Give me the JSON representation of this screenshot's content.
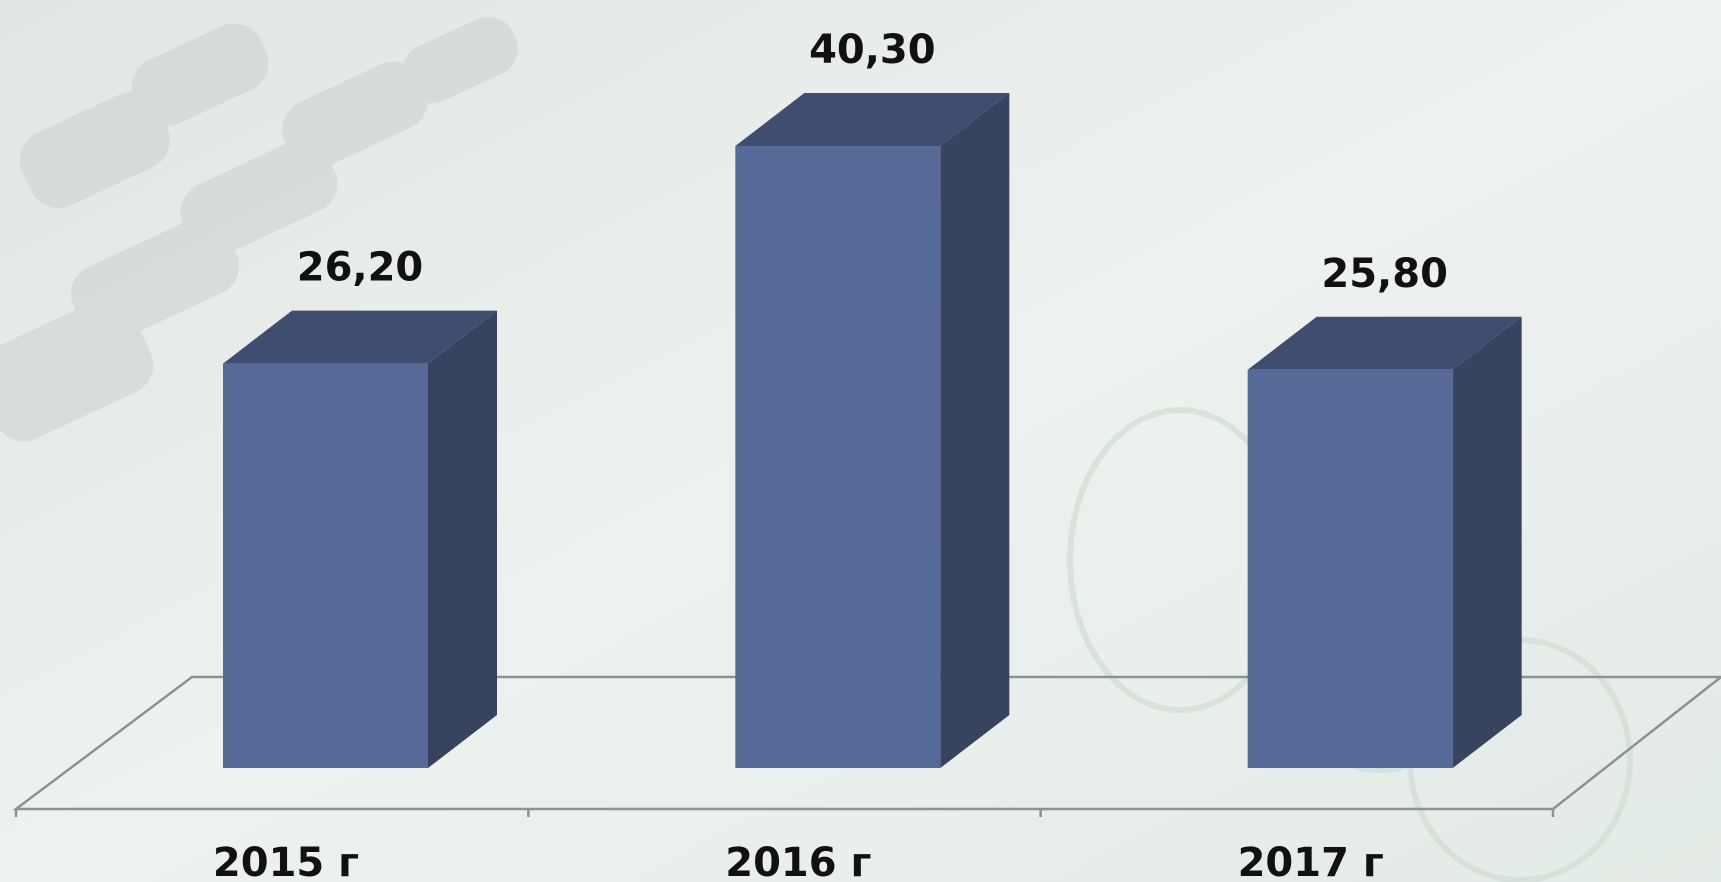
{
  "chart_data": {
    "type": "bar3d",
    "categories": [
      "2015 г",
      "2016 г",
      "2017 г"
    ],
    "values": [
      26.2,
      40.3,
      25.8
    ],
    "value_labels": [
      "26,20",
      "40,30",
      "25,80"
    ],
    "color": "#556a96"
  }
}
